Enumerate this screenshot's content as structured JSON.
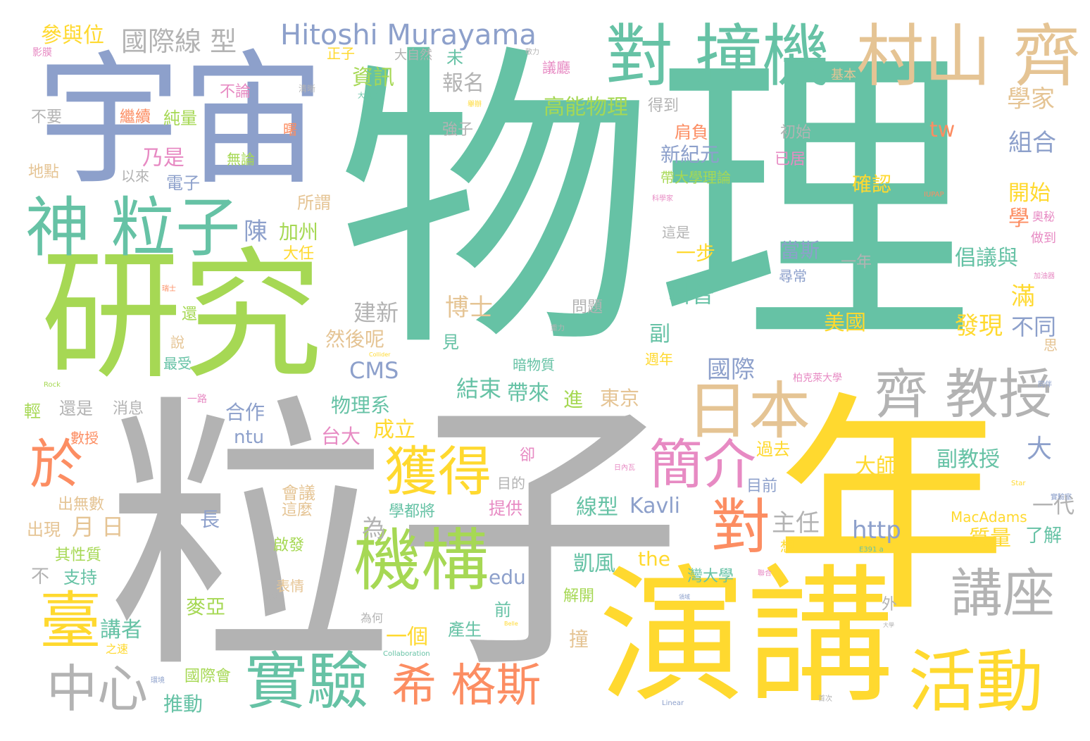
{
  "palette": {
    "teal": "#66c2a5",
    "orange": "#fc8d62",
    "blue": "#8da0cb",
    "pink": "#e78ac3",
    "green": "#a6d854",
    "yellow": "#ffd92f",
    "tan": "#e5c494",
    "gray": "#b3b3b3"
  },
  "words": [
    {
      "text": "物理",
      "color": "teal"
    },
    {
      "text": "粒子",
      "color": "gray"
    },
    {
      "text": "年",
      "color": "yellow"
    },
    {
      "text": "宇宙",
      "color": "blue"
    },
    {
      "text": "研究",
      "color": "green"
    },
    {
      "text": "演講",
      "color": "yellow"
    },
    {
      "text": "對 撞機",
      "color": "teal"
    },
    {
      "text": "村山 齊",
      "color": "tan"
    },
    {
      "text": "Hitoshi Murayama",
      "color": "blue"
    },
    {
      "text": "神 粒子",
      "color": "teal"
    },
    {
      "text": "日本",
      "color": "tan"
    },
    {
      "text": "齊 教授",
      "color": "gray"
    },
    {
      "text": "活動",
      "color": "yellow"
    },
    {
      "text": "機構",
      "color": "green"
    },
    {
      "text": "實驗",
      "color": "teal"
    },
    {
      "text": "希 格斯",
      "color": "orange"
    },
    {
      "text": "獲得",
      "color": "yellow"
    },
    {
      "text": "簡介",
      "color": "pink"
    },
    {
      "text": "對",
      "color": "orange"
    },
    {
      "text": "講座",
      "color": "gray"
    },
    {
      "text": "臺",
      "color": "yellow"
    },
    {
      "text": "中心",
      "color": "gray"
    },
    {
      "text": "於",
      "color": "orange"
    },
    {
      "text": "國際線 型",
      "color": "gray"
    },
    {
      "text": "參與位",
      "color": "yellow"
    },
    {
      "text": "資訊",
      "color": "green"
    },
    {
      "text": "報名",
      "color": "gray"
    },
    {
      "text": "高能物理",
      "color": "green"
    },
    {
      "text": "得到",
      "color": "gray"
    },
    {
      "text": "學家",
      "color": "tan"
    },
    {
      "text": "tw",
      "color": "orange"
    },
    {
      "text": "組合",
      "color": "blue"
    },
    {
      "text": "確認",
      "color": "yellow"
    },
    {
      "text": "開始",
      "color": "yellow"
    },
    {
      "text": "新紀元",
      "color": "blue"
    },
    {
      "text": "帶大學理論",
      "color": "green"
    },
    {
      "text": "初始",
      "color": "gray"
    },
    {
      "text": "已居",
      "color": "pink"
    },
    {
      "text": "肩負",
      "color": "orange"
    },
    {
      "text": "強子",
      "color": "gray"
    },
    {
      "text": "乃是",
      "color": "pink"
    },
    {
      "text": "純量",
      "color": "green"
    },
    {
      "text": "繼續",
      "color": "orange"
    },
    {
      "text": "電子",
      "color": "blue"
    },
    {
      "text": "地點",
      "color": "tan"
    },
    {
      "text": "以來",
      "color": "gray"
    },
    {
      "text": "所謂",
      "color": "tan"
    },
    {
      "text": "加州",
      "color": "green"
    },
    {
      "text": "陳",
      "color": "blue"
    },
    {
      "text": "大任",
      "color": "yellow"
    },
    {
      "text": "一步",
      "color": "yellow"
    },
    {
      "text": "當斯",
      "color": "blue"
    },
    {
      "text": "一年",
      "color": "gray"
    },
    {
      "text": "倡議與",
      "color": "teal"
    },
    {
      "text": "學",
      "color": "orange"
    },
    {
      "text": "科普",
      "color": "teal"
    },
    {
      "text": "滿",
      "color": "yellow"
    },
    {
      "text": "不同",
      "color": "blue"
    },
    {
      "text": "發現",
      "color": "yellow"
    },
    {
      "text": "美國",
      "color": "yellow"
    },
    {
      "text": "建新",
      "color": "gray"
    },
    {
      "text": "博士",
      "color": "tan"
    },
    {
      "text": "然後呢",
      "color": "tan"
    },
    {
      "text": "CMS",
      "color": "blue"
    },
    {
      "text": "結束",
      "color": "teal"
    },
    {
      "text": "帶來",
      "color": "teal"
    },
    {
      "text": "國際",
      "color": "blue"
    },
    {
      "text": "副",
      "color": "teal"
    },
    {
      "text": "週年",
      "color": "yellow"
    },
    {
      "text": "暗物質",
      "color": "teal"
    },
    {
      "text": "進",
      "color": "green"
    },
    {
      "text": "東京",
      "color": "tan"
    },
    {
      "text": "物理系",
      "color": "teal"
    },
    {
      "text": "還是",
      "color": "gray"
    },
    {
      "text": "消息",
      "color": "gray"
    },
    {
      "text": "合作",
      "color": "blue"
    },
    {
      "text": "ntu",
      "color": "blue"
    },
    {
      "text": "台大",
      "color": "pink"
    },
    {
      "text": "成立",
      "color": "yellow"
    },
    {
      "text": "大",
      "color": "blue"
    },
    {
      "text": "副教授",
      "color": "teal"
    },
    {
      "text": "大師",
      "color": "yellow"
    },
    {
      "text": "過去",
      "color": "yellow"
    },
    {
      "text": "目前",
      "color": "blue"
    },
    {
      "text": "目的",
      "color": "gray"
    },
    {
      "text": "一個",
      "color": "yellow"
    },
    {
      "text": "學都將",
      "color": "teal"
    },
    {
      "text": "提供",
      "color": "pink"
    },
    {
      "text": "線型",
      "color": "teal"
    },
    {
      "text": "Kavli",
      "color": "blue"
    },
    {
      "text": "長",
      "color": "blue"
    },
    {
      "text": "主任",
      "color": "gray"
    },
    {
      "text": "http",
      "color": "blue"
    },
    {
      "text": "一代",
      "color": "gray"
    },
    {
      "text": "MacAdams",
      "color": "yellow"
    },
    {
      "text": "質量",
      "color": "yellow"
    },
    {
      "text": "了解",
      "color": "teal"
    },
    {
      "text": "月 日",
      "color": "tan"
    },
    {
      "text": "為",
      "color": "gray"
    },
    {
      "text": "出無數",
      "color": "tan"
    },
    {
      "text": "出現",
      "color": "tan"
    },
    {
      "text": "其性質",
      "color": "green"
    },
    {
      "text": "不",
      "color": "gray"
    },
    {
      "text": "支持",
      "color": "teal"
    },
    {
      "text": "edu",
      "color": "blue"
    },
    {
      "text": "凱風",
      "color": "teal"
    },
    {
      "text": "the",
      "color": "yellow"
    },
    {
      "text": "灣大學",
      "color": "teal"
    },
    {
      "text": "麥亞",
      "color": "green"
    },
    {
      "text": "前",
      "color": "teal"
    },
    {
      "text": "解開",
      "color": "green"
    },
    {
      "text": "外",
      "color": "gray"
    },
    {
      "text": "講者",
      "color": "teal"
    },
    {
      "text": "產生",
      "color": "teal"
    },
    {
      "text": "撞",
      "color": "tan"
    },
    {
      "text": "國際會",
      "color": "green"
    },
    {
      "text": "推動",
      "color": "teal"
    },
    {
      "text": "會議",
      "color": "tan"
    },
    {
      "text": "這麼",
      "color": "tan"
    },
    {
      "text": "啟發",
      "color": "green"
    },
    {
      "text": "表情",
      "color": "tan"
    },
    {
      "text": "正子",
      "color": "yellow"
    },
    {
      "text": "未",
      "color": "teal"
    },
    {
      "text": "大自然",
      "color": "gray"
    },
    {
      "text": "議廳",
      "color": "pink"
    },
    {
      "text": "基本",
      "color": "tan"
    },
    {
      "text": "不論",
      "color": "pink"
    },
    {
      "text": "不要",
      "color": "gray"
    },
    {
      "text": "無論",
      "color": "green"
    },
    {
      "text": "見",
      "color": "teal"
    },
    {
      "text": "最受",
      "color": "teal"
    },
    {
      "text": "說",
      "color": "tan"
    },
    {
      "text": "還",
      "color": "green"
    },
    {
      "text": "問題",
      "color": "gray"
    },
    {
      "text": "輕",
      "color": "green"
    },
    {
      "text": "一路",
      "color": "pink"
    },
    {
      "text": "柏克萊大學",
      "color": "pink"
    },
    {
      "text": "數授",
      "color": "orange"
    },
    {
      "text": "卻",
      "color": "pink"
    },
    {
      "text": "為何",
      "color": "gray"
    },
    {
      "text": "思",
      "color": "tan"
    },
    {
      "text": "做到",
      "color": "pink"
    },
    {
      "text": "尋常",
      "color": "blue"
    },
    {
      "text": "這是",
      "color": "gray"
    },
    {
      "text": "想",
      "color": "yellow"
    },
    {
      "text": "Rock",
      "color": "green"
    },
    {
      "text": "Collaboration",
      "color": "teal"
    },
    {
      "text": "Collider",
      "color": "yellow"
    },
    {
      "text": "Linear",
      "color": "blue"
    },
    {
      "text": "Star",
      "color": "yellow"
    },
    {
      "text": "IUPAP",
      "color": "orange"
    },
    {
      "text": "Belle",
      "color": "yellow"
    },
    {
      "text": "E391 a",
      "color": "teal"
    },
    {
      "text": "影膜",
      "color": "pink"
    },
    {
      "text": "清晰",
      "color": "gray"
    },
    {
      "text": "曙",
      "color": "orange"
    },
    {
      "text": "大強子",
      "color": "teal"
    },
    {
      "text": "舉辦",
      "color": "yellow"
    },
    {
      "text": "科學家",
      "color": "pink"
    },
    {
      "text": "奧秘",
      "color": "pink"
    },
    {
      "text": "加油器",
      "color": "pink"
    },
    {
      "text": "同伴",
      "color": "blue"
    },
    {
      "text": "實驗室",
      "color": "blue"
    },
    {
      "text": "首次",
      "color": "gray"
    },
    {
      "text": "大學",
      "color": "gray"
    },
    {
      "text": "領域",
      "color": "blue"
    },
    {
      "text": "之速",
      "color": "yellow"
    },
    {
      "text": "環境",
      "color": "blue"
    },
    {
      "text": "日內瓦",
      "color": "pink"
    },
    {
      "text": "瑞士",
      "color": "orange"
    },
    {
      "text": "重力",
      "color": "gray"
    },
    {
      "text": "聯合",
      "color": "pink"
    },
    {
      "text": "剎翁",
      "color": "gray"
    },
    {
      "text": "敬力",
      "color": "gray"
    }
  ]
}
